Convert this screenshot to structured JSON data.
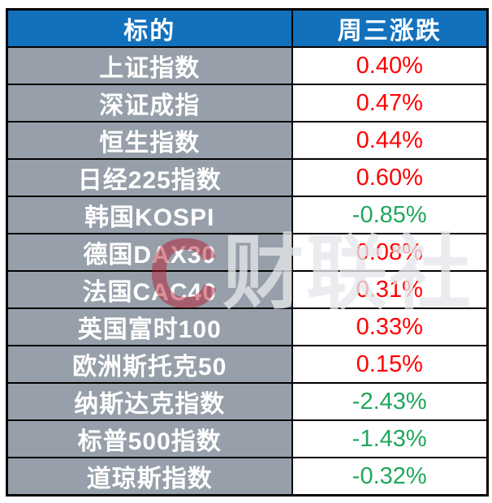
{
  "colors": {
    "header_bg": "#1271BD",
    "header_text": "#FFFFFF",
    "label_bg": "#97A0AA",
    "label_text": "#FFFFFF",
    "value_bg": "#FFFFFF",
    "up": "#FF0000",
    "down": "#1FA75C",
    "border": "#000000"
  },
  "table": {
    "headers": [
      "标的",
      "周三涨跌"
    ],
    "rows": [
      {
        "label": "上证指数",
        "change": "0.40%"
      },
      {
        "label": "深证成指",
        "change": "0.47%"
      },
      {
        "label": "恒生指数",
        "change": "0.44%"
      },
      {
        "label": "日经225指数",
        "change": "0.60%"
      },
      {
        "label": "韩国KOSPI",
        "change": "-0.85%"
      },
      {
        "label": "德国DAX30",
        "change": "0.08%"
      },
      {
        "label": "法国CAC40",
        "change": "0.31%"
      },
      {
        "label": "英国富时100",
        "change": "0.33%"
      },
      {
        "label": "欧洲斯托克50",
        "change": "0.15%"
      },
      {
        "label": "纳斯达克指数",
        "change": "-2.43%"
      },
      {
        "label": "标普500指数",
        "change": "-1.43%"
      },
      {
        "label": "道琼斯指数",
        "change": "-0.32%"
      }
    ]
  },
  "watermark": {
    "logo_letter": "C",
    "text": "财联社"
  },
  "chart_data": {
    "type": "table",
    "title": "",
    "columns": [
      "标的",
      "周三涨跌"
    ],
    "categories": [
      "上证指数",
      "深证成指",
      "恒生指数",
      "日经225指数",
      "韩国KOSPI",
      "德国DAX30",
      "法国CAC40",
      "英国富时100",
      "欧洲斯托克50",
      "纳斯达克指数",
      "标普500指数",
      "道琼斯指数"
    ],
    "values": [
      0.4,
      0.47,
      0.44,
      0.6,
      -0.85,
      0.08,
      0.31,
      0.33,
      0.15,
      -2.43,
      -1.43,
      -0.32
    ],
    "unit": "%",
    "color_rule": "positive=red, negative=green"
  }
}
